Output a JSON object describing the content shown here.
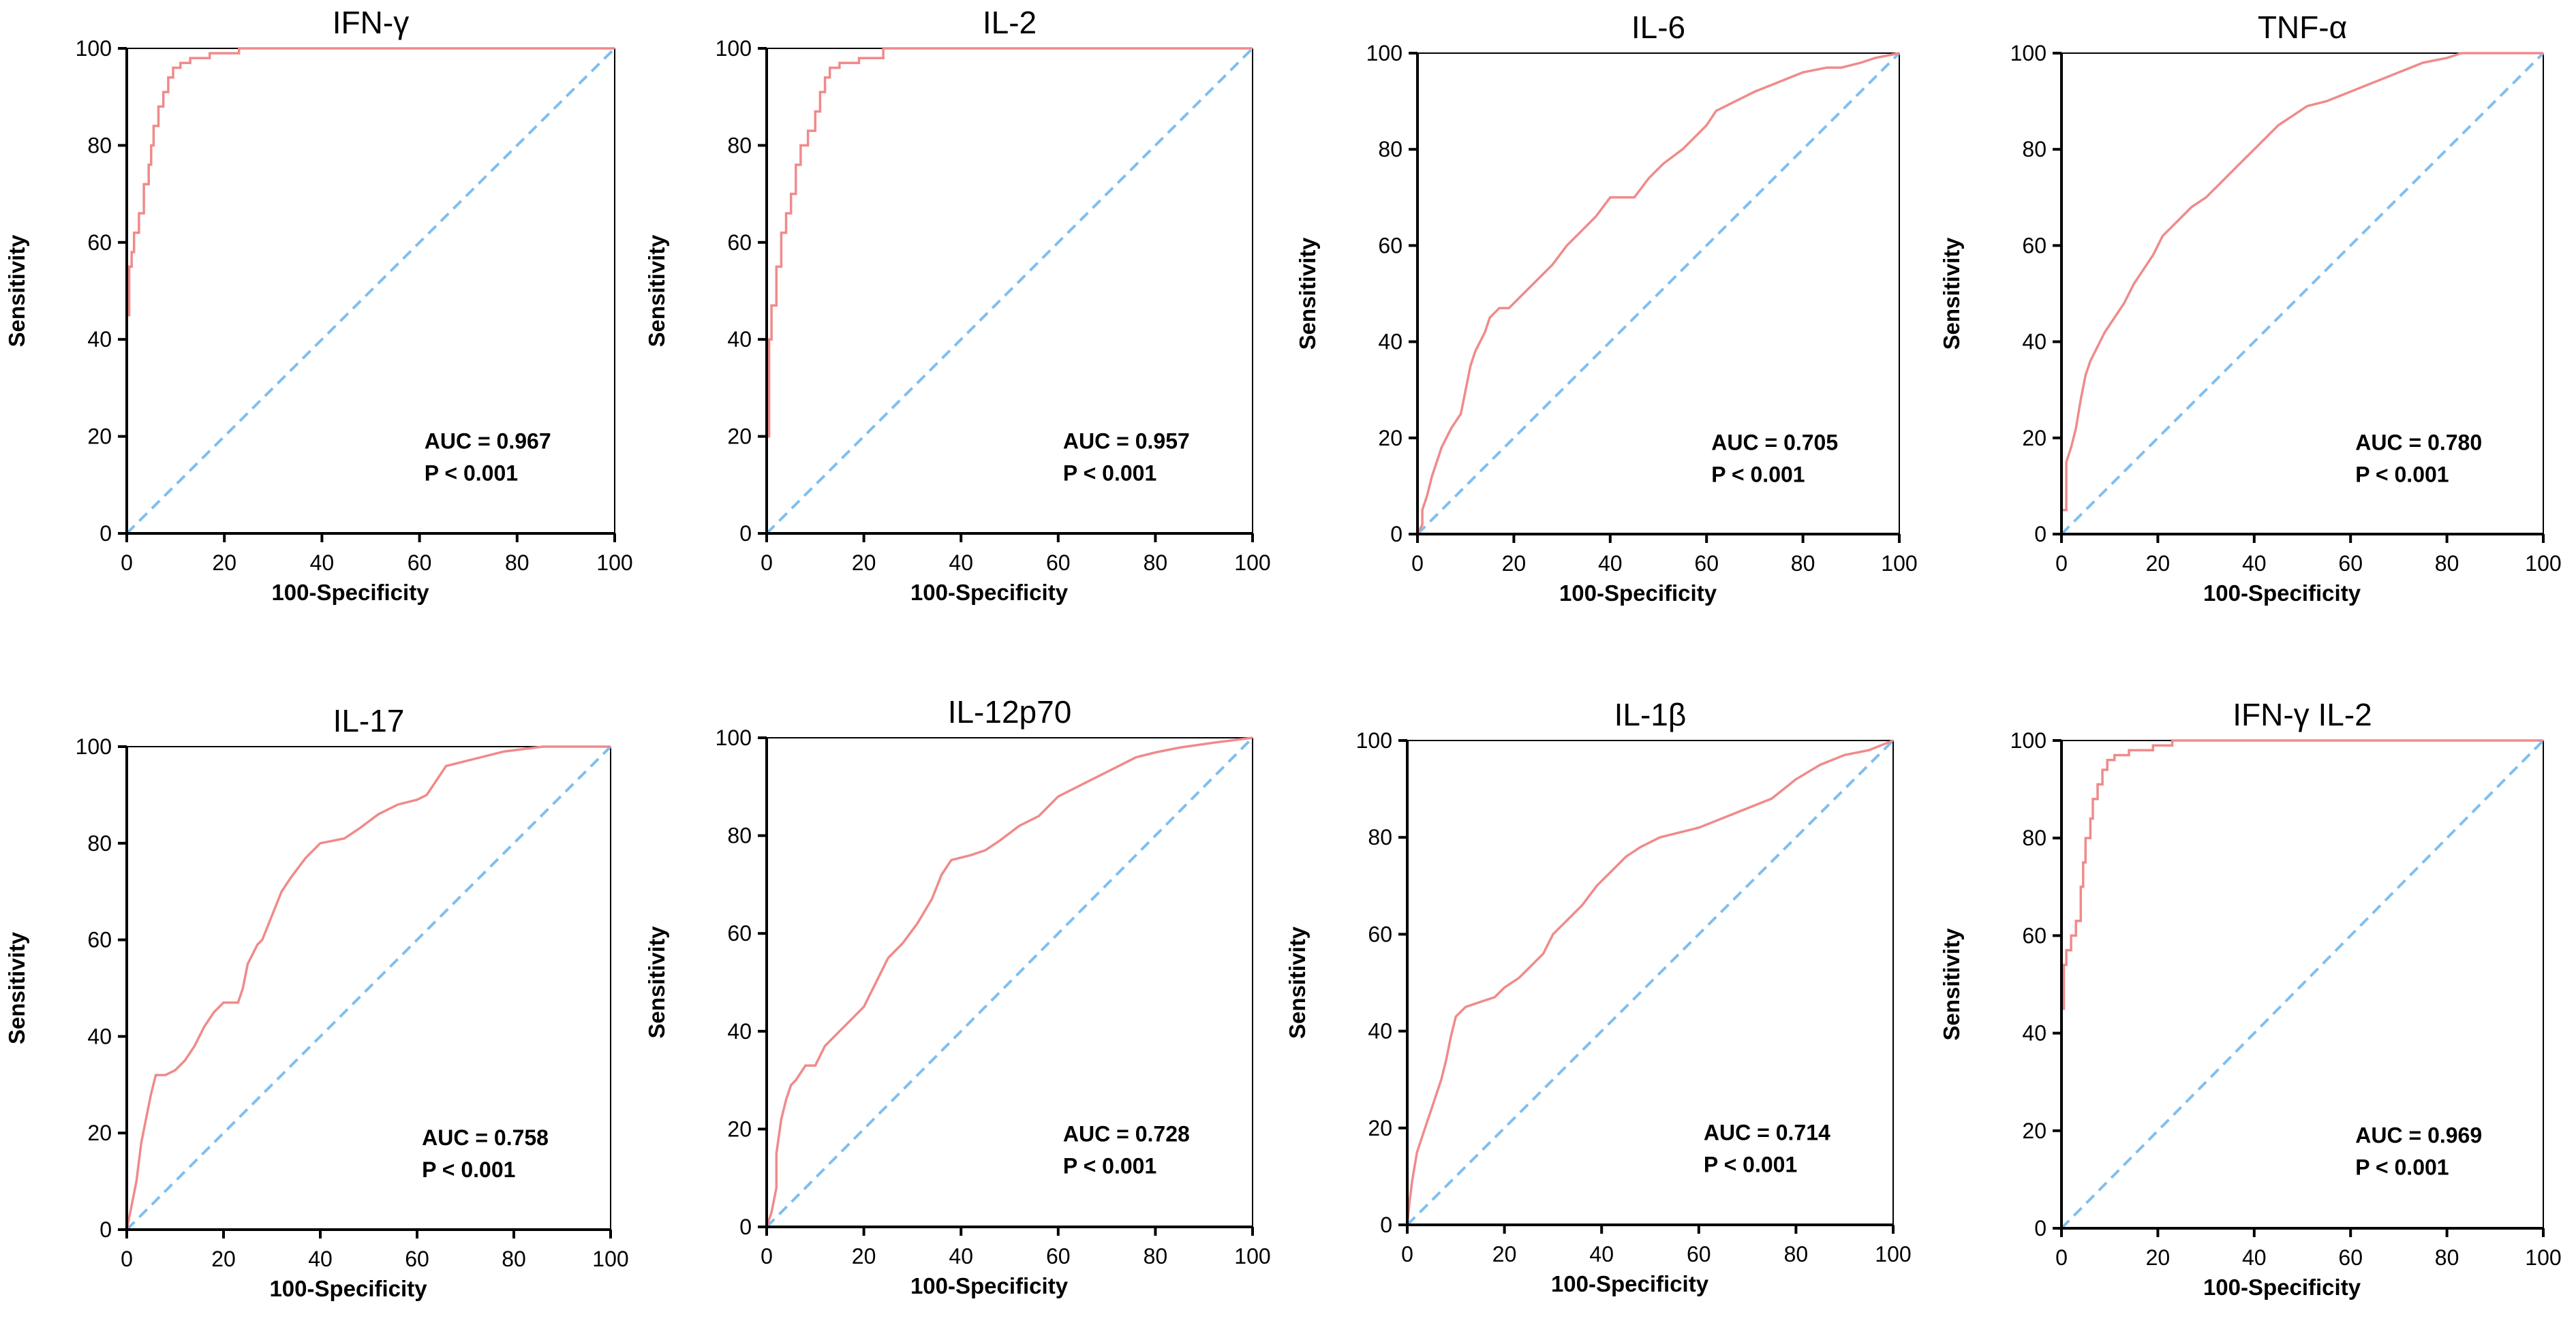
{
  "figure": {
    "background": "#ffffff"
  },
  "style": {
    "roc_color": "#f08a8a",
    "ref_color": "#7fbff0",
    "axis_color": "#000000"
  },
  "chart_data": [
    {
      "type": "line",
      "title": "IFN-γ",
      "xlabel": "100-Specificity",
      "ylabel": "Sensitivity",
      "xlim": [
        0,
        100
      ],
      "ylim": [
        0,
        100
      ],
      "xticks": [
        0,
        20,
        40,
        60,
        80,
        100
      ],
      "yticks": [
        0,
        20,
        40,
        60,
        80,
        100
      ],
      "auc_label": "AUC = 0.967",
      "p_label": "P < 0.001",
      "series": [
        {
          "name": "ROC",
          "x": [
            0,
            0,
            0,
            0.5,
            0.5,
            1,
            1,
            1.5,
            1.5,
            2.5,
            2.5,
            3.5,
            3.5,
            4.5,
            4.5,
            5,
            5,
            5.5,
            5.5,
            6.5,
            6.5,
            7.5,
            7.5,
            8.5,
            8.5,
            9.5,
            9.5,
            11,
            11,
            13,
            13,
            14,
            14,
            17,
            17,
            23,
            23,
            100
          ],
          "y": [
            0,
            40,
            45,
            45,
            55,
            55,
            58,
            58,
            62,
            62,
            66,
            66,
            72,
            72,
            76,
            76,
            80,
            80,
            84,
            84,
            88,
            88,
            91,
            91,
            94,
            94,
            96,
            96,
            97,
            97,
            98,
            98,
            98,
            98,
            99,
            99,
            100,
            100
          ]
        },
        {
          "name": "Reference",
          "x": [
            0,
            100
          ],
          "y": [
            0,
            100
          ]
        }
      ]
    },
    {
      "type": "line",
      "title": "IL-2",
      "xlabel": "100-Specificity",
      "ylabel": "Sensitivity",
      "xlim": [
        0,
        100
      ],
      "ylim": [
        0,
        100
      ],
      "xticks": [
        0,
        20,
        40,
        60,
        80,
        100
      ],
      "yticks": [
        0,
        20,
        40,
        60,
        80,
        100
      ],
      "auc_label": "AUC = 0.957",
      "p_label": "P < 0.001",
      "series": [
        {
          "name": "ROC",
          "x": [
            0,
            0,
            0.5,
            0.5,
            1,
            1,
            2,
            2,
            3,
            3,
            3.5,
            4,
            4,
            5,
            5,
            6,
            6,
            7,
            7,
            8.5,
            8.5,
            10,
            10,
            11,
            11,
            12,
            12,
            13,
            13,
            15,
            15,
            19,
            19,
            24,
            24,
            100
          ],
          "y": [
            0,
            20,
            20,
            40,
            40,
            47,
            47,
            55,
            55,
            62,
            62,
            62,
            66,
            66,
            70,
            70,
            76,
            76,
            80,
            80,
            83,
            83,
            87,
            87,
            91,
            91,
            94,
            94,
            96,
            96,
            97,
            97,
            98,
            98,
            100,
            100
          ]
        },
        {
          "name": "Reference",
          "x": [
            0,
            100
          ],
          "y": [
            0,
            100
          ]
        }
      ]
    },
    {
      "type": "line",
      "title": "IL-6",
      "xlabel": "100-Specificity",
      "ylabel": "Sensitivity",
      "xlim": [
        0,
        100
      ],
      "ylim": [
        0,
        100
      ],
      "xticks": [
        0,
        20,
        40,
        60,
        80,
        100
      ],
      "yticks": [
        0,
        20,
        40,
        60,
        80,
        100
      ],
      "auc_label": "AUC = 0.705",
      "p_label": "P < 0.001",
      "series": [
        {
          "name": "ROC",
          "x": [
            0,
            1,
            1,
            2,
            3,
            4,
            5,
            7,
            9,
            10,
            11,
            12,
            13,
            14,
            15,
            17,
            19,
            22,
            25,
            28,
            31,
            34,
            37,
            40,
            45,
            48,
            51,
            55,
            58,
            60,
            62,
            66,
            70,
            75,
            80,
            85,
            88,
            92,
            95,
            100
          ],
          "y": [
            0,
            2,
            5,
            8,
            12,
            15,
            18,
            22,
            25,
            30,
            35,
            38,
            40,
            42,
            45,
            47,
            47,
            50,
            53,
            56,
            60,
            63,
            66,
            70,
            70,
            74,
            77,
            80,
            83,
            85,
            88,
            90,
            92,
            94,
            96,
            97,
            97,
            98,
            99,
            100
          ]
        },
        {
          "name": "Reference",
          "x": [
            0,
            100
          ],
          "y": [
            0,
            100
          ]
        }
      ]
    },
    {
      "type": "line",
      "title": "TNF-α",
      "xlabel": "100-Specificity",
      "ylabel": "Sensitivity",
      "xlim": [
        0,
        100
      ],
      "ylim": [
        0,
        100
      ],
      "xticks": [
        0,
        20,
        40,
        60,
        80,
        100
      ],
      "yticks": [
        0,
        20,
        40,
        60,
        80,
        100
      ],
      "auc_label": "AUC = 0.780",
      "p_label": "P < 0.001",
      "series": [
        {
          "name": "ROC",
          "x": [
            0,
            0,
            1,
            1,
            2,
            3,
            4,
            5,
            6,
            7,
            9,
            11,
            13,
            15,
            17,
            19,
            21,
            24,
            27,
            30,
            33,
            36,
            39,
            42,
            45,
            48,
            51,
            55,
            60,
            65,
            70,
            75,
            80,
            83,
            100
          ],
          "y": [
            0,
            5,
            5,
            15,
            18,
            22,
            28,
            33,
            36,
            38,
            42,
            45,
            48,
            52,
            55,
            58,
            62,
            65,
            68,
            70,
            73,
            76,
            79,
            82,
            85,
            87,
            89,
            90,
            92,
            94,
            96,
            98,
            99,
            100,
            100
          ]
        },
        {
          "name": "Reference",
          "x": [
            0,
            100
          ],
          "y": [
            0,
            100
          ]
        }
      ]
    },
    {
      "type": "line",
      "title": "IL-17",
      "xlabel": "100-Specificity",
      "ylabel": "Sensitivity",
      "xlim": [
        0,
        100
      ],
      "ylim": [
        0,
        100
      ],
      "xticks": [
        0,
        20,
        40,
        60,
        80,
        100
      ],
      "yticks": [
        0,
        20,
        40,
        60,
        80,
        100
      ],
      "auc_label": "AUC = 0.758",
      "p_label": "P < 0.001",
      "series": [
        {
          "name": "ROC",
          "x": [
            0,
            2,
            3,
            4,
            5,
            6,
            8,
            10,
            12,
            14,
            16,
            18,
            20,
            22,
            23,
            24,
            25,
            27,
            28,
            30,
            32,
            34,
            37,
            40,
            45,
            48,
            52,
            56,
            60,
            62,
            66,
            70,
            78,
            86,
            100
          ],
          "y": [
            0,
            10,
            18,
            23,
            28,
            32,
            32,
            33,
            35,
            38,
            42,
            45,
            47,
            47,
            47,
            50,
            55,
            59,
            60,
            65,
            70,
            73,
            77,
            80,
            81,
            83,
            86,
            88,
            89,
            90,
            96,
            97,
            99,
            100,
            100
          ]
        },
        {
          "name": "Reference",
          "x": [
            0,
            100
          ],
          "y": [
            0,
            100
          ]
        }
      ]
    },
    {
      "type": "line",
      "title": "IL-12p70",
      "xlabel": "100-Specificity",
      "ylabel": "Sensitivity",
      "xlim": [
        0,
        100
      ],
      "ylim": [
        0,
        100
      ],
      "xticks": [
        0,
        20,
        40,
        60,
        80,
        100
      ],
      "yticks": [
        0,
        20,
        40,
        60,
        80,
        100
      ],
      "auc_label": "AUC = 0.728",
      "p_label": "P < 0.001",
      "series": [
        {
          "name": "ROC",
          "x": [
            0,
            1,
            2,
            2,
            3,
            4,
            5,
            6,
            8,
            10,
            12,
            15,
            18,
            20,
            22,
            25,
            28,
            31,
            34,
            36,
            38,
            42,
            45,
            48,
            52,
            56,
            60,
            64,
            68,
            72,
            76,
            80,
            85,
            92,
            100
          ],
          "y": [
            0,
            3,
            8,
            15,
            22,
            26,
            29,
            30,
            33,
            33,
            37,
            40,
            43,
            45,
            49,
            55,
            58,
            62,
            67,
            72,
            75,
            76,
            77,
            79,
            82,
            84,
            88,
            90,
            92,
            94,
            96,
            97,
            98,
            99,
            100
          ]
        },
        {
          "name": "Reference",
          "x": [
            0,
            100
          ],
          "y": [
            0,
            100
          ]
        }
      ]
    },
    {
      "type": "line",
      "title": "IL-1β",
      "xlabel": "100-Specificity",
      "ylabel": "Sensitivity",
      "xlim": [
        0,
        100
      ],
      "ylim": [
        0,
        100
      ],
      "xticks": [
        0,
        20,
        40,
        60,
        80,
        100
      ],
      "yticks": [
        0,
        20,
        40,
        60,
        80,
        100
      ],
      "auc_label": "AUC = 0.714",
      "p_label": "P < 0.001",
      "series": [
        {
          "name": "ROC",
          "x": [
            0,
            0.5,
            1,
            2,
            3,
            4,
            5,
            6,
            7,
            8,
            9,
            10,
            12,
            15,
            18,
            20,
            23,
            26,
            28,
            30,
            33,
            36,
            39,
            42,
            45,
            48,
            52,
            56,
            60,
            65,
            70,
            75,
            80,
            85,
            90,
            95,
            100
          ],
          "y": [
            0,
            5,
            9,
            15,
            18,
            21,
            24,
            27,
            30,
            34,
            39,
            43,
            45,
            46,
            47,
            49,
            51,
            54,
            56,
            60,
            63,
            66,
            70,
            73,
            76,
            78,
            80,
            81,
            82,
            84,
            86,
            88,
            92,
            95,
            97,
            98,
            100
          ]
        },
        {
          "name": "Reference",
          "x": [
            0,
            100
          ],
          "y": [
            0,
            100
          ]
        }
      ]
    },
    {
      "type": "line",
      "title": "IFN-γ IL-2",
      "xlabel": "100-Specificity",
      "ylabel": "Sensitivity",
      "xlim": [
        0,
        100
      ],
      "ylim": [
        0,
        100
      ],
      "xticks": [
        0,
        20,
        40,
        60,
        80,
        100
      ],
      "yticks": [
        0,
        20,
        40,
        60,
        80,
        100
      ],
      "auc_label": "AUC = 0.969",
      "p_label": "P < 0.001",
      "series": [
        {
          "name": "ROC",
          "x": [
            0,
            0,
            0,
            0.5,
            0.5,
            1,
            1,
            2,
            2,
            3,
            3,
            4,
            4,
            4.5,
            4.5,
            5,
            5,
            6,
            6,
            6.5,
            6.5,
            7.5,
            7.5,
            8.5,
            8.5,
            9.5,
            9.5,
            11,
            11,
            14,
            14,
            19,
            19,
            23,
            23,
            100
          ],
          "y": [
            0,
            40,
            45,
            45,
            54,
            54,
            57,
            57,
            60,
            60,
            63,
            63,
            70,
            70,
            75,
            75,
            80,
            80,
            84,
            84,
            88,
            88,
            91,
            91,
            94,
            94,
            96,
            96,
            97,
            97,
            98,
            98,
            99,
            99,
            100,
            100
          ]
        },
        {
          "name": "Reference",
          "x": [
            0,
            100
          ],
          "y": [
            0,
            100
          ]
        }
      ]
    }
  ]
}
